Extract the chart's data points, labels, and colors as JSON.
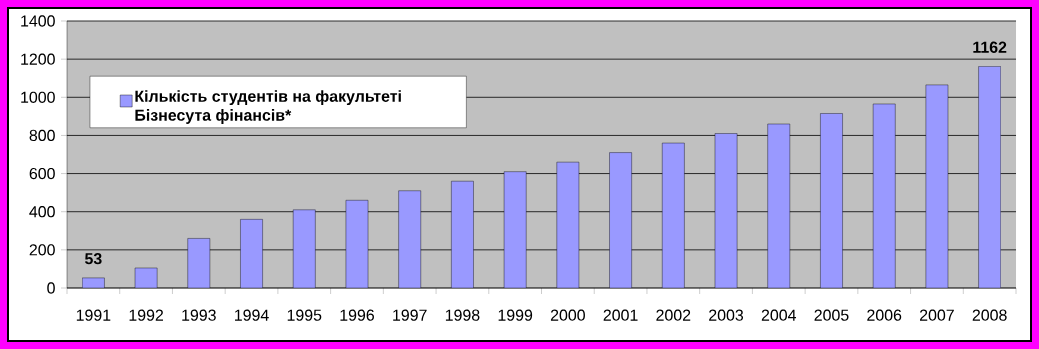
{
  "chart_data": {
    "type": "bar",
    "categories": [
      "1991",
      "1992",
      "1993",
      "1994",
      "1995",
      "1996",
      "1997",
      "1998",
      "1999",
      "2000",
      "2001",
      "2002",
      "2003",
      "2004",
      "2005",
      "2006",
      "2007",
      "2008"
    ],
    "series": [
      {
        "name": "Кількість студентів на факультеті Бізнесута фінансів*",
        "color": "#9999ff",
        "values": [
          53,
          105,
          260,
          360,
          410,
          460,
          510,
          560,
          610,
          660,
          710,
          760,
          810,
          860,
          915,
          965,
          1065,
          1162
        ],
        "value_labels": [
          "53",
          null,
          null,
          null,
          null,
          null,
          null,
          null,
          null,
          null,
          null,
          null,
          null,
          null,
          null,
          null,
          null,
          "1162"
        ]
      }
    ],
    "ylim": [
      0,
      1400
    ],
    "yticks": [
      0,
      200,
      400,
      600,
      800,
      1000,
      1200,
      1400
    ],
    "grid": "y",
    "legend": "top left"
  }
}
